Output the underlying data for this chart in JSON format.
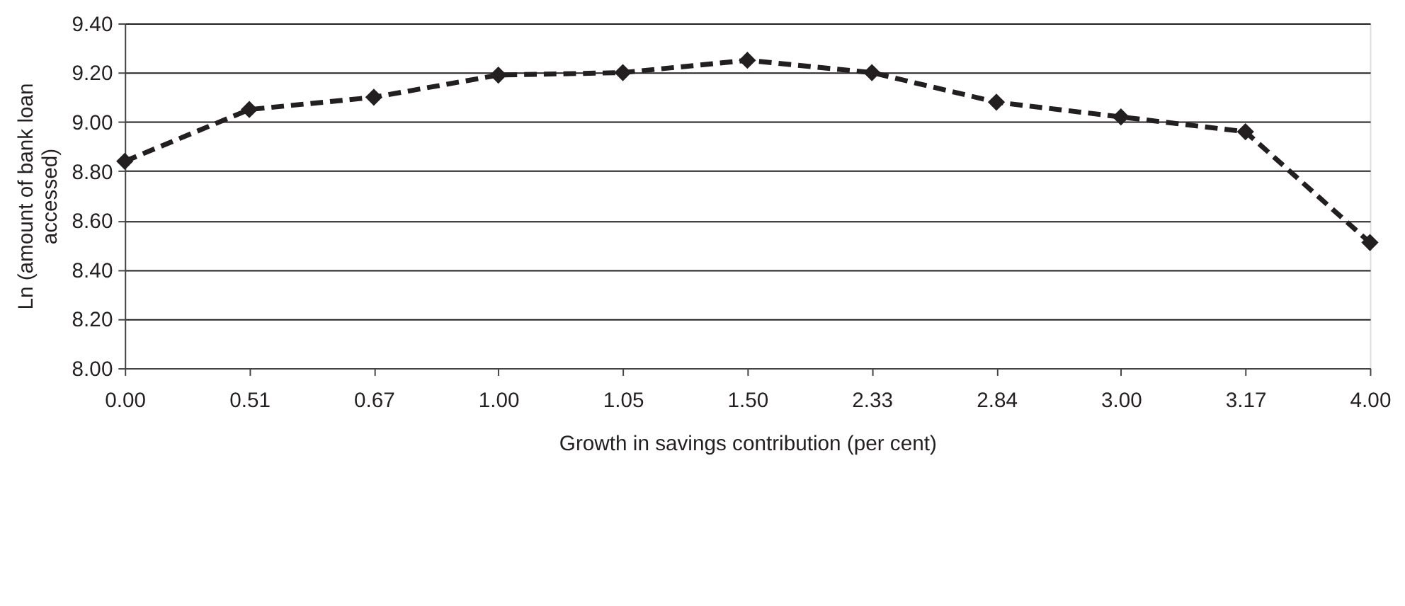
{
  "chart_data": {
    "type": "line",
    "xlabel": "Growth in savings contribution (per cent)",
    "ylabel": "Ln (amount of bank loan accessed)",
    "categories": [
      "0.00",
      "0.51",
      "0.67",
      "1.00",
      "1.05",
      "1.50",
      "2.33",
      "2.84",
      "3.00",
      "3.17",
      "4.00"
    ],
    "series": [
      {
        "color": "#231f20",
        "values": [
          8.84,
          9.05,
          9.1,
          9.19,
          9.2,
          9.25,
          9.2,
          9.08,
          9.02,
          8.96,
          8.51
        ]
      }
    ],
    "ylim": [
      8.0,
      9.4
    ],
    "yticks": [
      {
        "value": 8.0,
        "label": "8.00"
      },
      {
        "value": 8.2,
        "label": "8.20"
      },
      {
        "value": 8.4,
        "label": "8.40"
      },
      {
        "value": 8.6,
        "label": "8.60"
      },
      {
        "value": 8.8,
        "label": "8.80"
      },
      {
        "value": 9.0,
        "label": "9.00"
      },
      {
        "value": 9.2,
        "label": "9.20"
      },
      {
        "value": 9.4,
        "label": "9.40"
      }
    ],
    "grid": "y",
    "marker": "diamond",
    "line_style": "dashed"
  }
}
